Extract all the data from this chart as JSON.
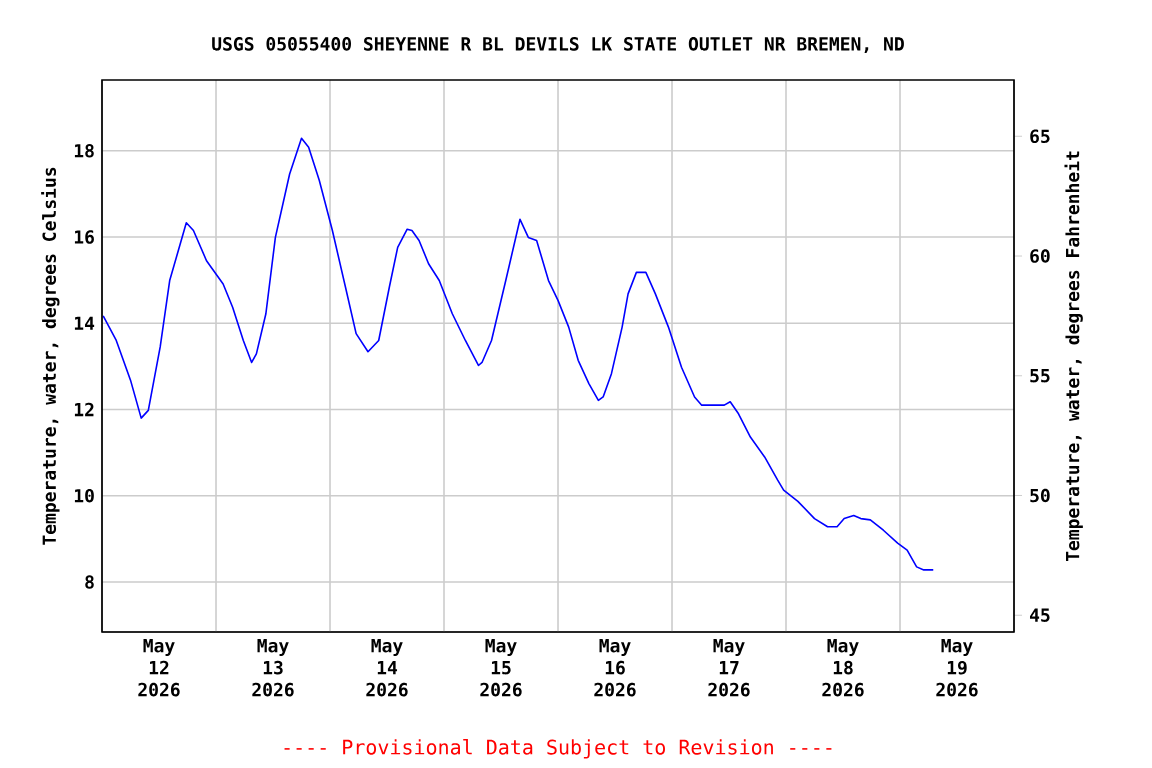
{
  "chart_data": {
    "type": "line",
    "title": "USGS 05055400 SHEYENNE R BL DEVILS LK STATE OUTLET NR BREMEN, ND",
    "ylabel": "Temperature, water, degrees Celsius",
    "y2label": "Temperature, water, degrees Fahrenheit",
    "annotations": [
      "---- Provisional Data Subject to Revision ----"
    ],
    "xlim": [
      "2026-05-12T00:00",
      "2026-05-20T00:00"
    ],
    "xticks": [
      {
        "value": "2026-05-12T12:00",
        "label": "May 12 2026"
      },
      {
        "value": "2026-05-13T12:00",
        "label": "May 13 2026"
      },
      {
        "value": "2026-05-14T12:00",
        "label": "May 14 2026"
      },
      {
        "value": "2026-05-15T12:00",
        "label": "May 15 2026"
      },
      {
        "value": "2026-05-16T12:00",
        "label": "May 16 2026"
      },
      {
        "value": "2026-05-17T12:00",
        "label": "May 17 2026"
      },
      {
        "value": "2026-05-18T12:00",
        "label": "May 18 2026"
      },
      {
        "value": "2026-05-19T12:00",
        "label": "May 19 2026"
      },
      {
        "value": "2026-05-13T00:00",
        "label": null
      },
      {
        "value": "2026-05-14T00:00",
        "label": null
      },
      {
        "value": "2026-05-15T00:00",
        "label": null
      },
      {
        "value": "2026-05-16T00:00",
        "label": null
      },
      {
        "value": "2026-05-17T00:00",
        "label": null
      },
      {
        "value": "2026-05-18T00:00",
        "label": null
      },
      {
        "value": "2026-05-19T00:00",
        "label": null
      }
    ],
    "ylim": [
      6.84,
      19.64
    ],
    "yticks": [
      8,
      10,
      12,
      14,
      16,
      18
    ],
    "y2lim": [
      44.3,
      67.35
    ],
    "y2ticks": [
      45,
      50,
      55,
      60,
      65
    ],
    "grid": true,
    "series": [
      {
        "color": "#0000ff",
        "x": [
          "2026-05-12T00:15",
          "2026-05-12T03:00",
          "2026-05-12T06:00",
          "2026-05-12T08:15",
          "2026-05-12T09:45",
          "2026-05-12T12:15",
          "2026-05-12T14:15",
          "2026-05-12T17:45",
          "2026-05-12T19:15",
          "2026-05-12T22:00",
          "2026-05-13T01:30",
          "2026-05-13T03:30",
          "2026-05-13T05:45",
          "2026-05-13T07:30",
          "2026-05-13T08:30",
          "2026-05-13T10:30",
          "2026-05-13T12:30",
          "2026-05-13T15:30",
          "2026-05-13T18:00",
          "2026-05-13T19:30",
          "2026-05-13T21:45",
          "2026-05-14T00:30",
          "2026-05-14T03:15",
          "2026-05-14T05:30",
          "2026-05-14T08:00",
          "2026-05-14T10:15",
          "2026-05-14T12:30",
          "2026-05-14T14:15",
          "2026-05-14T16:15",
          "2026-05-14T17:15",
          "2026-05-14T18:45",
          "2026-05-14T20:45",
          "2026-05-14T23:00",
          "2026-05-15T01:45",
          "2026-05-15T04:30",
          "2026-05-15T07:15",
          "2026-05-15T08:00",
          "2026-05-15T10:00",
          "2026-05-15T13:00",
          "2026-05-15T16:00",
          "2026-05-15T17:45",
          "2026-05-15T19:30",
          "2026-05-15T22:00",
          "2026-05-16T00:00",
          "2026-05-16T02:15",
          "2026-05-16T04:15",
          "2026-05-16T06:30",
          "2026-05-16T08:30",
          "2026-05-16T09:30",
          "2026-05-16T11:15",
          "2026-05-16T13:30",
          "2026-05-16T14:45",
          "2026-05-16T16:30",
          "2026-05-16T18:30",
          "2026-05-16T20:30",
          "2026-05-16T23:15",
          "2026-05-17T02:00",
          "2026-05-17T04:45",
          "2026-05-17T06:15",
          "2026-05-17T11:00",
          "2026-05-17T12:15",
          "2026-05-17T14:00",
          "2026-05-17T16:30",
          "2026-05-17T19:30",
          "2026-05-17T22:15",
          "2026-05-17T23:30",
          "2026-05-18T02:30",
          "2026-05-18T06:00",
          "2026-05-18T08:45",
          "2026-05-18T10:45",
          "2026-05-18T12:15",
          "2026-05-18T14:15",
          "2026-05-18T15:45",
          "2026-05-18T17:45",
          "2026-05-18T20:30",
          "2026-05-18T23:30",
          "2026-05-19T01:30",
          "2026-05-19T03:30",
          "2026-05-19T05:00",
          "2026-05-19T07:00"
        ],
        "values": [
          14.17,
          13.6,
          12.68,
          11.8,
          11.98,
          13.45,
          14.99,
          16.33,
          16.15,
          15.45,
          14.91,
          14.37,
          13.6,
          13.09,
          13.29,
          14.22,
          15.99,
          17.46,
          18.29,
          18.08,
          17.31,
          16.15,
          14.84,
          13.76,
          13.34,
          13.6,
          14.84,
          15.76,
          16.18,
          16.15,
          15.92,
          15.38,
          14.99,
          14.22,
          13.6,
          13.02,
          13.09,
          13.6,
          14.99,
          16.41,
          15.99,
          15.92,
          14.99,
          14.53,
          13.91,
          13.14,
          12.6,
          12.21,
          12.29,
          12.83,
          13.91,
          14.68,
          15.18,
          15.18,
          14.68,
          13.91,
          12.98,
          12.29,
          12.1,
          12.1,
          12.18,
          11.9,
          11.36,
          10.9,
          10.36,
          10.13,
          9.87,
          9.47,
          9.28,
          9.28,
          9.47,
          9.54,
          9.47,
          9.44,
          9.2,
          8.9,
          8.74,
          8.35,
          8.28,
          8.28
        ]
      }
    ]
  }
}
